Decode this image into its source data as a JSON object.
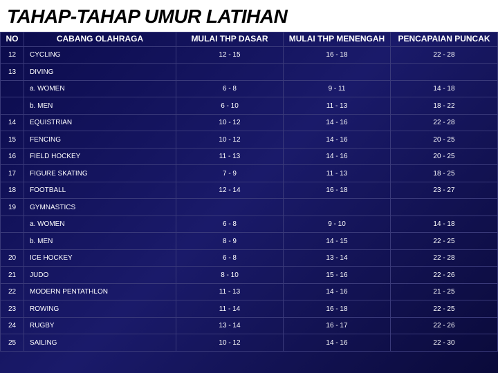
{
  "title": "TAHAP-TAHAP UMUR LATIHAN",
  "headers": {
    "no": "NO",
    "sport": "CABANG OLAHRAGA",
    "basic": "MULAI THP DASAR",
    "middle": "MULAI THP MENENGAH",
    "peak": "PENCAPAIAN PUNCAK"
  },
  "rows": [
    {
      "no": "12",
      "sport": "CYCLING",
      "basic": "12  -  15",
      "middle": "16  -  18",
      "peak": "22  -  28"
    },
    {
      "no": "13",
      "sport": "DIVING",
      "basic": "",
      "middle": "",
      "peak": ""
    },
    {
      "no": "",
      "sport": "a. WOMEN",
      "basic": "6  -  8",
      "middle": "9  -  11",
      "peak": "14  -  18"
    },
    {
      "no": "",
      "sport": "b. MEN",
      "basic": "6  -  10",
      "middle": "11  -  13",
      "peak": "18  -  22"
    },
    {
      "no": "14",
      "sport": "EQUISTRIAN",
      "basic": "10  -  12",
      "middle": "14  -  16",
      "peak": "22  -  28"
    },
    {
      "no": "15",
      "sport": "FENCING",
      "basic": "10  -  12",
      "middle": "14  -  16",
      "peak": "20  -  25"
    },
    {
      "no": "16",
      "sport": "FIELD HOCKEY",
      "basic": "11  -  13",
      "middle": "14  -  16",
      "peak": "20  -  25"
    },
    {
      "no": "17",
      "sport": "FIGURE SKATING",
      "basic": "7  -  9",
      "middle": "11  -  13",
      "peak": "18  -  25"
    },
    {
      "no": "18",
      "sport": "FOOTBALL",
      "basic": "12  -  14",
      "middle": "16  -  18",
      "peak": "23  -  27"
    },
    {
      "no": "19",
      "sport": "GYMNASTICS",
      "basic": "",
      "middle": "",
      "peak": ""
    },
    {
      "no": "",
      "sport": "a. WOMEN",
      "basic": "6  -  8",
      "middle": "9  -  10",
      "peak": "14  -  18"
    },
    {
      "no": "",
      "sport": "b. MEN",
      "basic": "8  -  9",
      "middle": "14  -  15",
      "peak": "22  -  25"
    },
    {
      "no": "20",
      "sport": "ICE HOCKEY",
      "basic": "6  -  8",
      "middle": "13  -  14",
      "peak": "22  -  28"
    },
    {
      "no": "21",
      "sport": "JUDO",
      "basic": "8  -  10",
      "middle": "15  -  16",
      "peak": "22  -  26"
    },
    {
      "no": "22",
      "sport": "MODERN PENTATHLON",
      "basic": "11  -  13",
      "middle": "14  -  16",
      "peak": "21  -  25"
    },
    {
      "no": "23",
      "sport": "ROWING",
      "basic": "11  -  14",
      "middle": "16  -  18",
      "peak": "22  -  25"
    },
    {
      "no": "24",
      "sport": "RUGBY",
      "basic": "13  -  14",
      "middle": "16  -  17",
      "peak": "22  -  26"
    },
    {
      "no": "25",
      "sport": "SAILING",
      "basic": "10  -  12",
      "middle": "14  -  16",
      "peak": "22  -  30"
    }
  ],
  "colors": {
    "title_bg": "#ffffff",
    "title_fg": "#000000",
    "body_bg_start": "#0a0a4a",
    "body_bg_end": "#0a0a3a",
    "border": "#3a3a7a",
    "text": "#ffffff"
  }
}
